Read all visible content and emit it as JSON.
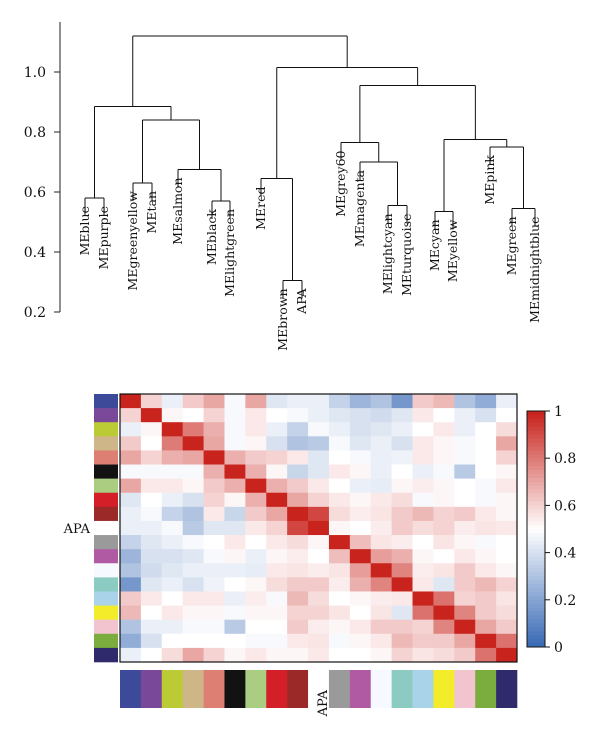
{
  "chart_data": [
    {
      "type": "dendrogram",
      "title": "",
      "xlabel": "",
      "ylabel": "",
      "ylim": [
        0.2,
        1.15
      ],
      "yticks": [
        "0.2",
        "0.4",
        "0.6",
        "0.8",
        "1.0"
      ],
      "leaves": [
        "MEblue",
        "MEpurple",
        "MEgreenyellow",
        "MEtan",
        "MEsalmon",
        "MEblack",
        "MElightgreen",
        "MEred",
        "MEbrown",
        "APA",
        "MEgrey60",
        "MEmagenta",
        "MElightcyan",
        "MEturquoise",
        "MEcyan",
        "MEyellow",
        "MEpink",
        "MEgreen",
        "MEmidnightblue"
      ],
      "merges": [
        {
          "a": 0,
          "b": 1,
          "h": 0.58
        },
        {
          "a": 2,
          "b": 3,
          "h": 0.63
        },
        {
          "a": 5,
          "b": 6,
          "h": 0.57
        },
        {
          "a": 4,
          "b": "m2",
          "h": 0.675
        },
        {
          "a": "m1",
          "b": "m3",
          "h": 0.84
        },
        {
          "a": "m0",
          "b": "m4",
          "h": 0.885
        },
        {
          "a": 8,
          "b": 9,
          "h": 0.305
        },
        {
          "a": 7,
          "b": "m6",
          "h": 0.645
        },
        {
          "a": 12,
          "b": 13,
          "h": 0.555
        },
        {
          "a": 11,
          "b": "m8",
          "h": 0.7
        },
        {
          "a": 10,
          "b": "m9",
          "h": 0.765
        },
        {
          "a": 14,
          "b": 15,
          "h": 0.535
        },
        {
          "a": 17,
          "b": 18,
          "h": 0.545
        },
        {
          "a": 16,
          "b": "m12",
          "h": 0.75
        },
        {
          "a": "m11",
          "b": "m13",
          "h": 0.775
        },
        {
          "a": "m10",
          "b": "m14",
          "h": 0.955
        },
        {
          "a": "m7",
          "b": "m15",
          "h": 1.015
        },
        {
          "a": "m5",
          "b": "m16",
          "h": 1.12
        }
      ]
    },
    {
      "type": "heatmap",
      "title": "",
      "row_colors": [
        "#3d4a9a",
        "#7a4898",
        "#bacb36",
        "#cfb689",
        "#de7f73",
        "#121212",
        "#abcd82",
        "#d51f28",
        "#9b2928",
        "#ffffff",
        "#9a9a9a",
        "#b05aa3",
        "#f6f9ff",
        "#8ccbc2",
        "#a8d3e8",
        "#f2ec2a",
        "#f2c4d0",
        "#7aac3e",
        "#2f2a6b"
      ],
      "row_labels": [
        "",
        "",
        "",
        "",
        "",
        "",
        "",
        "",
        "",
        "APA",
        "",
        "",
        "",
        "",
        "",
        "",
        "",
        "",
        ""
      ],
      "column_label": "APA",
      "values": [
        [
          1.0,
          0.6,
          0.45,
          0.62,
          0.7,
          0.48,
          0.7,
          0.42,
          0.45,
          0.45,
          0.35,
          0.25,
          0.3,
          0.15,
          0.62,
          0.66,
          0.3,
          0.22,
          0.45
        ],
        [
          0.6,
          1.0,
          0.52,
          0.5,
          0.6,
          0.48,
          0.55,
          0.5,
          0.48,
          0.45,
          0.42,
          0.4,
          0.38,
          0.42,
          0.55,
          0.5,
          0.45,
          0.4,
          0.5
        ],
        [
          0.45,
          0.52,
          1.0,
          0.8,
          0.68,
          0.48,
          0.55,
          0.45,
          0.35,
          0.48,
          0.45,
          0.4,
          0.42,
          0.45,
          0.5,
          0.55,
          0.45,
          0.5,
          0.58
        ],
        [
          0.62,
          0.5,
          0.8,
          1.0,
          0.7,
          0.48,
          0.52,
          0.4,
          0.3,
          0.32,
          0.48,
          0.42,
          0.45,
          0.4,
          0.55,
          0.52,
          0.48,
          0.5,
          0.7
        ],
        [
          0.7,
          0.6,
          0.68,
          0.7,
          1.0,
          0.68,
          0.62,
          0.6,
          0.55,
          0.42,
          0.5,
          0.48,
          0.45,
          0.46,
          0.55,
          0.52,
          0.48,
          0.5,
          0.6
        ],
        [
          0.48,
          0.48,
          0.48,
          0.48,
          0.68,
          1.0,
          0.68,
          0.52,
          0.36,
          0.42,
          0.55,
          0.52,
          0.45,
          0.5,
          0.45,
          0.48,
          0.32,
          0.5,
          0.52
        ],
        [
          0.7,
          0.55,
          0.55,
          0.52,
          0.62,
          0.68,
          1.0,
          0.68,
          0.62,
          0.55,
          0.5,
          0.45,
          0.44,
          0.52,
          0.54,
          0.52,
          0.5,
          0.48,
          0.55
        ],
        [
          0.42,
          0.5,
          0.45,
          0.4,
          0.6,
          0.52,
          0.68,
          1.0,
          0.7,
          0.6,
          0.55,
          0.52,
          0.55,
          0.58,
          0.48,
          0.52,
          0.5,
          0.48,
          0.52
        ],
        [
          0.45,
          0.48,
          0.35,
          0.3,
          0.55,
          0.36,
          0.62,
          0.7,
          1.0,
          0.92,
          0.58,
          0.54,
          0.56,
          0.62,
          0.66,
          0.6,
          0.62,
          0.55,
          0.52
        ],
        [
          0.45,
          0.45,
          0.48,
          0.32,
          0.42,
          0.42,
          0.55,
          0.6,
          0.92,
          1.0,
          0.52,
          0.5,
          0.54,
          0.62,
          0.58,
          0.6,
          0.54,
          0.56,
          0.55
        ],
        [
          0.35,
          0.42,
          0.45,
          0.48,
          0.5,
          0.55,
          0.5,
          0.55,
          0.58,
          0.52,
          1.0,
          0.65,
          0.56,
          0.54,
          0.5,
          0.56,
          0.52,
          0.48,
          0.5
        ],
        [
          0.25,
          0.4,
          0.4,
          0.42,
          0.48,
          0.52,
          0.45,
          0.52,
          0.54,
          0.5,
          0.65,
          1.0,
          0.72,
          0.68,
          0.52,
          0.5,
          0.55,
          0.52,
          0.5
        ],
        [
          0.3,
          0.38,
          0.42,
          0.45,
          0.45,
          0.45,
          0.44,
          0.55,
          0.56,
          0.54,
          0.56,
          0.72,
          1.0,
          0.78,
          0.54,
          0.56,
          0.62,
          0.55,
          0.52
        ],
        [
          0.15,
          0.42,
          0.45,
          0.4,
          0.46,
          0.5,
          0.52,
          0.58,
          0.62,
          0.62,
          0.54,
          0.68,
          0.78,
          1.0,
          0.55,
          0.42,
          0.62,
          0.66,
          0.6
        ],
        [
          0.62,
          0.55,
          0.5,
          0.55,
          0.55,
          0.45,
          0.54,
          0.48,
          0.66,
          0.58,
          0.5,
          0.52,
          0.54,
          0.55,
          1.0,
          0.82,
          0.6,
          0.62,
          0.56
        ],
        [
          0.66,
          0.5,
          0.55,
          0.52,
          0.52,
          0.48,
          0.52,
          0.52,
          0.6,
          0.6,
          0.56,
          0.5,
          0.56,
          0.42,
          0.82,
          1.0,
          0.78,
          0.62,
          0.58
        ],
        [
          0.3,
          0.45,
          0.45,
          0.48,
          0.48,
          0.32,
          0.5,
          0.5,
          0.62,
          0.54,
          0.52,
          0.55,
          0.62,
          0.62,
          0.6,
          0.78,
          1.0,
          0.7,
          0.62
        ],
        [
          0.22,
          0.4,
          0.5,
          0.5,
          0.5,
          0.5,
          0.48,
          0.48,
          0.55,
          0.56,
          0.48,
          0.52,
          0.55,
          0.66,
          0.62,
          0.62,
          0.7,
          1.0,
          0.82
        ],
        [
          0.45,
          0.5,
          0.58,
          0.7,
          0.6,
          0.52,
          0.55,
          0.52,
          0.52,
          0.55,
          0.5,
          0.5,
          0.52,
          0.6,
          0.56,
          0.58,
          0.62,
          0.82,
          1.0
        ]
      ],
      "colorbar": {
        "range": [
          0,
          1
        ],
        "ticks": [
          "0",
          "0.2",
          "0.4",
          "0.6",
          "0.8",
          "1"
        ],
        "colors": {
          "low": "#3a6bb5",
          "mid": "#ffffff",
          "high": "#c8231c"
        }
      }
    }
  ]
}
